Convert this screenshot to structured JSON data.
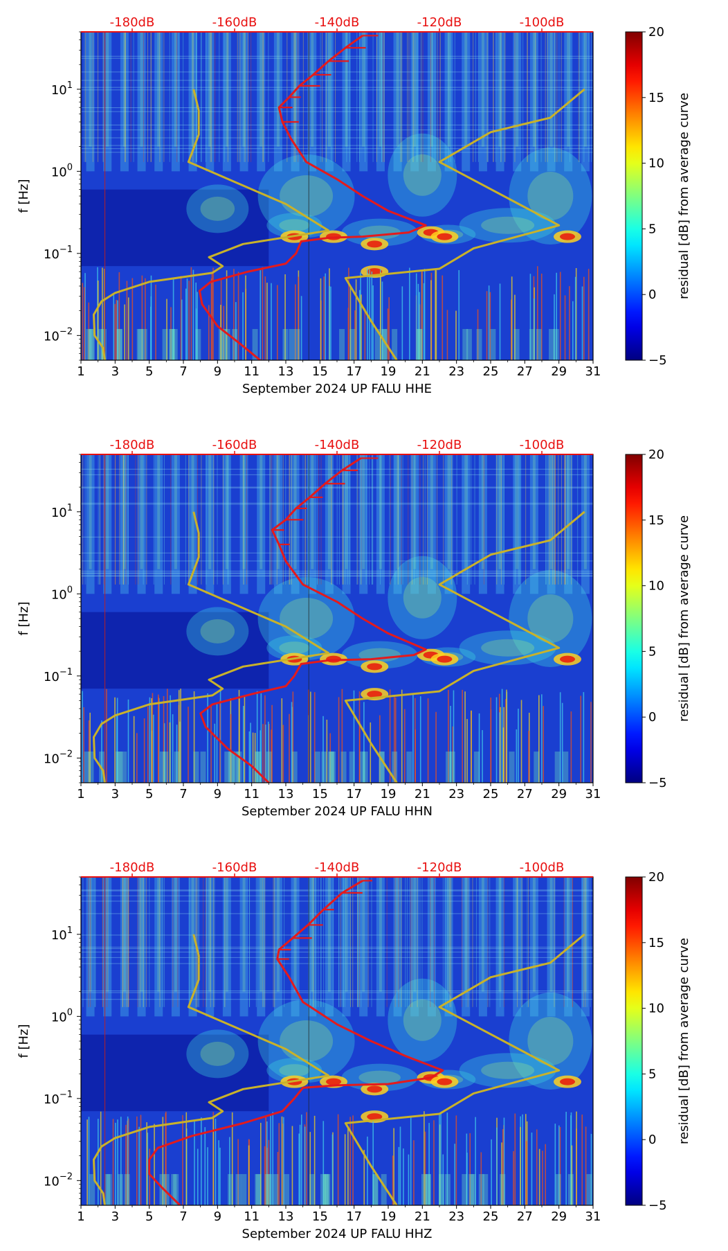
{
  "colors": {
    "top_axis": "#e81010",
    "mean_curve": "#e41a1c",
    "model_curve": "#c9b22a",
    "ridge": "#e0d020"
  },
  "chart_data": [
    {
      "type": "heatmap",
      "xlabel": "September 2024 UP FALU  HHE",
      "ylabel": "f [Hz]",
      "xlim": [
        1,
        31
      ],
      "ylim": [
        0.005,
        50
      ],
      "yscale": "log",
      "x_ticks": [
        "1",
        "3",
        "5",
        "7",
        "9",
        "11",
        "13",
        "15",
        "17",
        "19",
        "21",
        "23",
        "25",
        "27",
        "29",
        "31"
      ],
      "y_ticks": [
        {
          "label": "10",
          "exp": "−2",
          "value": 0.01
        },
        {
          "label": "10",
          "exp": "−1",
          "value": 0.1
        },
        {
          "label": "10",
          "exp": "0",
          "value": 1
        },
        {
          "label": "10",
          "exp": "1",
          "value": 10
        }
      ],
      "top_axis": {
        "labels": [
          "-180dB",
          "-160dB",
          "-140dB",
          "-120dB",
          "-100dB"
        ],
        "db_range": [
          -190,
          -90
        ]
      },
      "colorbar": {
        "label": "residual [dB] from average curve",
        "range": [
          -5,
          20
        ],
        "ticks": [
          "−5",
          "0",
          "5",
          "10",
          "15",
          "20"
        ]
      },
      "series": [
        {
          "name": "",
          "role": "mean",
          "points": [
            [
              11.5,
              0.005
            ],
            [
              10.3,
              0.008
            ],
            [
              9.0,
              0.013
            ],
            [
              8.1,
              0.024
            ],
            [
              7.95,
              0.035
            ],
            [
              8.6,
              0.045
            ],
            [
              10.8,
              0.06
            ],
            [
              13.0,
              0.075
            ],
            [
              13.6,
              0.1
            ],
            [
              13.9,
              0.14
            ],
            [
              15.5,
              0.155
            ],
            [
              17.5,
              0.16
            ],
            [
              20.2,
              0.18
            ],
            [
              21.2,
              0.22
            ],
            [
              19.0,
              0.33
            ],
            [
              17.5,
              0.5
            ],
            [
              16.0,
              0.8
            ],
            [
              14.2,
              1.3
            ],
            [
              13.3,
              2.5
            ],
            [
              12.8,
              4
            ],
            [
              12.6,
              6
            ],
            [
              13.2,
              8
            ],
            [
              13.8,
              11
            ],
            [
              14.6,
              15
            ],
            [
              15.5,
              22
            ],
            [
              16.5,
              32
            ],
            [
              17.5,
              45
            ]
          ]
        },
        {
          "name": "",
          "role": "low-noise-model",
          "points": [
            [
              2.4,
              0.005
            ],
            [
              2.3,
              0.007
            ],
            [
              1.8,
              0.01
            ],
            [
              1.75,
              0.018
            ],
            [
              2.2,
              0.026
            ],
            [
              3.0,
              0.033
            ],
            [
              5.0,
              0.045
            ],
            [
              8.7,
              0.058
            ],
            [
              9.3,
              0.07
            ],
            [
              8.5,
              0.09
            ],
            [
              10.5,
              0.13
            ],
            [
              15.5,
              0.19
            ],
            [
              13.0,
              0.4
            ],
            [
              7.3,
              1.3
            ],
            [
              7.9,
              2.8
            ],
            [
              7.9,
              5.5
            ],
            [
              7.6,
              10
            ]
          ]
        },
        {
          "name": "",
          "role": "high-noise-model",
          "points": [
            [
              19.5,
              0.005
            ],
            [
              18.0,
              0.015
            ],
            [
              16.5,
              0.05
            ],
            [
              22.0,
              0.065
            ],
            [
              24.0,
              0.115
            ],
            [
              29.0,
              0.22
            ],
            [
              22.0,
              1.3
            ],
            [
              25.0,
              3
            ],
            [
              28.5,
              4.5
            ],
            [
              30.5,
              10
            ]
          ]
        }
      ]
    },
    {
      "type": "heatmap",
      "xlabel": "September 2024 UP FALU  HHN",
      "ylabel": "f [Hz]",
      "xlim": [
        1,
        31
      ],
      "ylim": [
        0.005,
        50
      ],
      "yscale": "log",
      "x_ticks": [
        "1",
        "3",
        "5",
        "7",
        "9",
        "11",
        "13",
        "15",
        "17",
        "19",
        "21",
        "23",
        "25",
        "27",
        "29",
        "31"
      ],
      "y_ticks": [
        {
          "label": "10",
          "exp": "−2",
          "value": 0.01
        },
        {
          "label": "10",
          "exp": "−1",
          "value": 0.1
        },
        {
          "label": "10",
          "exp": "0",
          "value": 1
        },
        {
          "label": "10",
          "exp": "1",
          "value": 10
        }
      ],
      "top_axis": {
        "labels": [
          "-180dB",
          "-160dB",
          "-140dB",
          "-120dB",
          "-100dB"
        ],
        "db_range": [
          -190,
          -90
        ]
      },
      "colorbar": {
        "label": "residual [dB] from average curve",
        "range": [
          -5,
          20
        ],
        "ticks": [
          "−5",
          "0",
          "5",
          "10",
          "15",
          "20"
        ]
      },
      "series": [
        {
          "name": "",
          "role": "mean",
          "points": [
            [
              12.0,
              0.005
            ],
            [
              11.0,
              0.008
            ],
            [
              9.6,
              0.013
            ],
            [
              8.3,
              0.024
            ],
            [
              8.0,
              0.035
            ],
            [
              8.7,
              0.045
            ],
            [
              11.0,
              0.06
            ],
            [
              13.0,
              0.075
            ],
            [
              13.5,
              0.1
            ],
            [
              13.9,
              0.14
            ],
            [
              15.5,
              0.155
            ],
            [
              18.0,
              0.16
            ],
            [
              20.5,
              0.18
            ],
            [
              21.2,
              0.21
            ],
            [
              19.0,
              0.33
            ],
            [
              17.5,
              0.5
            ],
            [
              16.0,
              0.8
            ],
            [
              14.0,
              1.3
            ],
            [
              13.0,
              2.5
            ],
            [
              12.6,
              4
            ],
            [
              12.2,
              6
            ],
            [
              13.0,
              8
            ],
            [
              13.6,
              11
            ],
            [
              14.4,
              15
            ],
            [
              15.3,
              22
            ],
            [
              16.3,
              32
            ],
            [
              17.4,
              45
            ]
          ]
        },
        {
          "name": "",
          "role": "low-noise-model",
          "points": [
            [
              2.4,
              0.005
            ],
            [
              2.3,
              0.007
            ],
            [
              1.8,
              0.01
            ],
            [
              1.75,
              0.018
            ],
            [
              2.2,
              0.026
            ],
            [
              3.0,
              0.033
            ],
            [
              5.0,
              0.045
            ],
            [
              8.7,
              0.058
            ],
            [
              9.3,
              0.07
            ],
            [
              8.5,
              0.09
            ],
            [
              10.5,
              0.13
            ],
            [
              15.5,
              0.19
            ],
            [
              13.0,
              0.4
            ],
            [
              7.3,
              1.3
            ],
            [
              7.9,
              2.8
            ],
            [
              7.9,
              5.5
            ],
            [
              7.6,
              10
            ]
          ]
        },
        {
          "name": "",
          "role": "high-noise-model",
          "points": [
            [
              19.5,
              0.005
            ],
            [
              18.0,
              0.015
            ],
            [
              16.5,
              0.05
            ],
            [
              22.0,
              0.065
            ],
            [
              24.0,
              0.115
            ],
            [
              29.0,
              0.22
            ],
            [
              22.0,
              1.3
            ],
            [
              25.0,
              3
            ],
            [
              28.5,
              4.5
            ],
            [
              30.5,
              10
            ]
          ]
        }
      ]
    },
    {
      "type": "heatmap",
      "xlabel": "September 2024 UP FALU  HHZ",
      "ylabel": "f [Hz]",
      "xlim": [
        1,
        31
      ],
      "ylim": [
        0.005,
        50
      ],
      "yscale": "log",
      "x_ticks": [
        "1",
        "3",
        "5",
        "7",
        "9",
        "11",
        "13",
        "15",
        "17",
        "19",
        "21",
        "23",
        "25",
        "27",
        "29",
        "31"
      ],
      "y_ticks": [
        {
          "label": "10",
          "exp": "−2",
          "value": 0.01
        },
        {
          "label": "10",
          "exp": "−1",
          "value": 0.1
        },
        {
          "label": "10",
          "exp": "0",
          "value": 1
        },
        {
          "label": "10",
          "exp": "1",
          "value": 10
        }
      ],
      "top_axis": {
        "labels": [
          "-180dB",
          "-160dB",
          "-140dB",
          "-120dB",
          "-100dB"
        ],
        "db_range": [
          -190,
          -90
        ]
      },
      "colorbar": {
        "label": "residual [dB] from average curve",
        "range": [
          -5,
          20
        ],
        "ticks": [
          "−5",
          "0",
          "5",
          "10",
          "15",
          "20"
        ]
      },
      "series": [
        {
          "name": "",
          "role": "mean",
          "points": [
            [
              6.8,
              0.005
            ],
            [
              5.8,
              0.008
            ],
            [
              5.0,
              0.012
            ],
            [
              5.0,
              0.018
            ],
            [
              5.5,
              0.025
            ],
            [
              7.5,
              0.035
            ],
            [
              10.5,
              0.05
            ],
            [
              12.8,
              0.07
            ],
            [
              13.5,
              0.1
            ],
            [
              14.0,
              0.135
            ],
            [
              16.0,
              0.145
            ],
            [
              19.0,
              0.15
            ],
            [
              21.5,
              0.18
            ],
            [
              22.2,
              0.22
            ],
            [
              20.0,
              0.33
            ],
            [
              18.0,
              0.5
            ],
            [
              16.0,
              0.8
            ],
            [
              14.0,
              1.5
            ],
            [
              13.2,
              3
            ],
            [
              12.5,
              5
            ],
            [
              12.6,
              6.5
            ],
            [
              13.4,
              9
            ],
            [
              14.3,
              13
            ],
            [
              15.2,
              20
            ],
            [
              16.3,
              32
            ],
            [
              17.5,
              45
            ]
          ]
        },
        {
          "name": "",
          "role": "low-noise-model",
          "points": [
            [
              2.4,
              0.005
            ],
            [
              2.3,
              0.007
            ],
            [
              1.8,
              0.01
            ],
            [
              1.75,
              0.018
            ],
            [
              2.2,
              0.026
            ],
            [
              3.0,
              0.033
            ],
            [
              5.0,
              0.045
            ],
            [
              8.7,
              0.058
            ],
            [
              9.3,
              0.07
            ],
            [
              8.5,
              0.09
            ],
            [
              10.5,
              0.13
            ],
            [
              15.5,
              0.19
            ],
            [
              13.0,
              0.4
            ],
            [
              7.3,
              1.3
            ],
            [
              7.9,
              2.8
            ],
            [
              7.9,
              5.5
            ],
            [
              7.6,
              10
            ]
          ]
        },
        {
          "name": "",
          "role": "high-noise-model",
          "points": [
            [
              19.5,
              0.005
            ],
            [
              18.0,
              0.015
            ],
            [
              16.5,
              0.05
            ],
            [
              22.0,
              0.065
            ],
            [
              24.0,
              0.115
            ],
            [
              29.0,
              0.22
            ],
            [
              22.0,
              1.3
            ],
            [
              25.0,
              3
            ],
            [
              28.5,
              4.5
            ],
            [
              30.5,
              10
            ]
          ]
        }
      ]
    }
  ]
}
